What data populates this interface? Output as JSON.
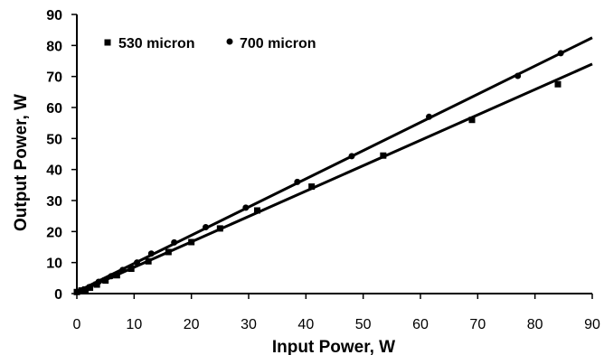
{
  "chart_data": {
    "type": "scatter",
    "title": "",
    "xlabel": "Input Power, W",
    "ylabel": "Output Power, W",
    "xlim": [
      0,
      90
    ],
    "ylim": [
      0,
      90
    ],
    "x_ticks": [
      0,
      10,
      20,
      30,
      40,
      50,
      60,
      70,
      80,
      90
    ],
    "y_ticks": [
      0,
      10,
      20,
      30,
      40,
      50,
      60,
      70,
      80,
      90
    ],
    "grid": false,
    "legend_position": "top-left",
    "series": [
      {
        "name": "530 micron",
        "marker": "square",
        "color": "#000000",
        "points": [
          [
            0,
            0.5
          ],
          [
            0.8,
            1.0
          ],
          [
            1.5,
            1.3
          ],
          [
            2.3,
            1.9
          ],
          [
            3.5,
            2.9
          ],
          [
            5,
            4.2
          ],
          [
            7,
            5.9
          ],
          [
            9.5,
            8.0
          ],
          [
            12.5,
            10.4
          ],
          [
            16,
            13.4
          ],
          [
            20,
            16.6
          ],
          [
            25,
            21.0
          ],
          [
            31.5,
            26.8
          ],
          [
            41,
            34.5
          ],
          [
            53.5,
            44.5
          ],
          [
            69,
            56.0
          ],
          [
            84,
            67.5
          ]
        ],
        "fit": [
          [
            0,
            0.3
          ],
          [
            90,
            74.0
          ]
        ]
      },
      {
        "name": "700 micron",
        "marker": "circle",
        "color": "#000000",
        "points": [
          [
            0.3,
            0.6
          ],
          [
            1.2,
            1.3
          ],
          [
            2.2,
            2.1
          ],
          [
            3.8,
            3.8
          ],
          [
            6,
            5.6
          ],
          [
            8,
            7.6
          ],
          [
            10.5,
            10.0
          ],
          [
            13,
            12.9
          ],
          [
            17,
            16.5
          ],
          [
            22.5,
            21.4
          ],
          [
            29.5,
            27.7
          ],
          [
            38.5,
            36.0
          ],
          [
            48,
            44.3
          ],
          [
            61.5,
            57.0
          ],
          [
            77,
            70.2
          ],
          [
            84.5,
            77.5
          ]
        ],
        "fit": [
          [
            0,
            0.6
          ],
          [
            90,
            82.5
          ]
        ]
      }
    ]
  }
}
